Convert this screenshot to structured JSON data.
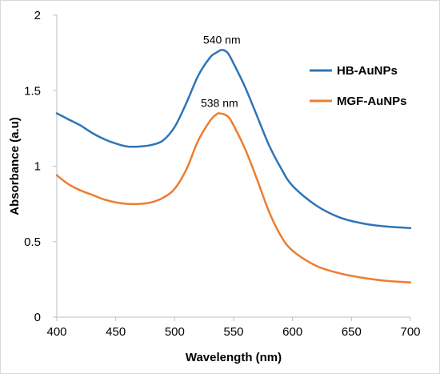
{
  "chart_data": {
    "type": "line",
    "xlabel": "Wavelength (nm)",
    "ylabel": "Absorbance (a.u)",
    "xlim": [
      400,
      700
    ],
    "ylim": [
      0,
      2
    ],
    "xticks": [
      "400",
      "450",
      "500",
      "550",
      "600",
      "650",
      "700"
    ],
    "yticks": [
      "0",
      "0.5",
      "1",
      "1.5",
      "2"
    ],
    "grid": false,
    "legend_position": "right",
    "series": [
      {
        "name": "HB-AuNPs",
        "color": "#2e75b6",
        "x": [
          400,
          410,
          420,
          430,
          440,
          450,
          460,
          470,
          480,
          490,
          500,
          510,
          520,
          530,
          535,
          540,
          545,
          550,
          560,
          570,
          580,
          590,
          600,
          620,
          640,
          660,
          680,
          700
        ],
        "y": [
          1.35,
          1.31,
          1.27,
          1.22,
          1.18,
          1.15,
          1.13,
          1.13,
          1.14,
          1.17,
          1.26,
          1.42,
          1.6,
          1.72,
          1.75,
          1.77,
          1.75,
          1.68,
          1.52,
          1.33,
          1.14,
          0.99,
          0.87,
          0.74,
          0.66,
          0.62,
          0.6,
          0.59
        ]
      },
      {
        "name": "MGF-AuNPs",
        "color": "#ed7d31",
        "x": [
          400,
          410,
          420,
          430,
          440,
          450,
          460,
          470,
          480,
          490,
          500,
          510,
          520,
          530,
          535,
          538,
          545,
          550,
          560,
          570,
          580,
          590,
          600,
          620,
          640,
          660,
          680,
          700
        ],
        "y": [
          0.94,
          0.88,
          0.84,
          0.81,
          0.78,
          0.76,
          0.75,
          0.75,
          0.76,
          0.79,
          0.85,
          0.98,
          1.17,
          1.3,
          1.34,
          1.35,
          1.33,
          1.27,
          1.11,
          0.91,
          0.7,
          0.54,
          0.44,
          0.34,
          0.29,
          0.26,
          0.24,
          0.23
        ]
      }
    ],
    "annotations": [
      {
        "text": "540 nm",
        "x": 540,
        "y": 1.77
      },
      {
        "text": "538 nm",
        "x": 538,
        "y": 1.35
      }
    ]
  }
}
